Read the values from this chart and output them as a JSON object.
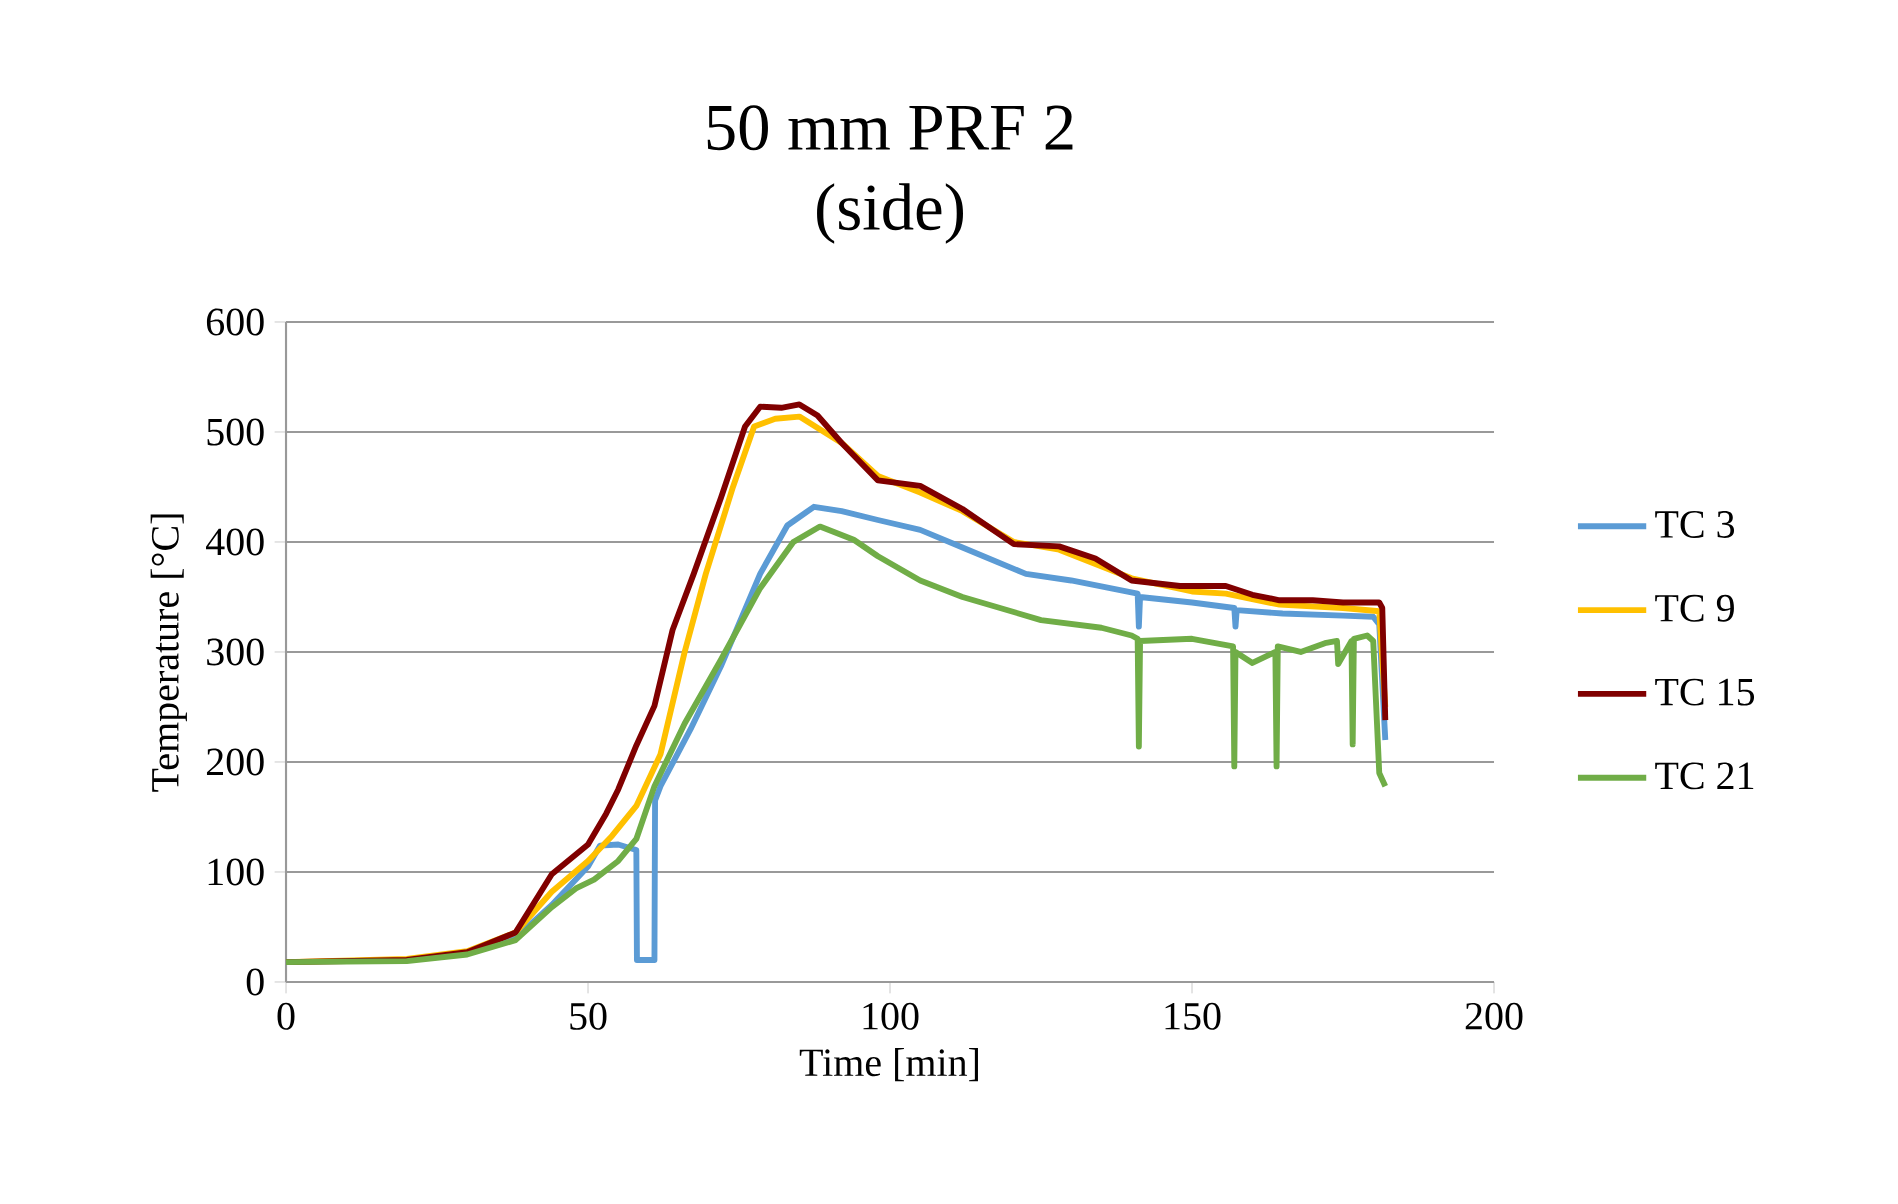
{
  "chart_data": {
    "type": "line",
    "title": "50 mm PRF 2",
    "subtitle": "(side)",
    "xlabel": "Time [min]",
    "ylabel": "Temperature [°C]",
    "xlim": [
      0,
      200
    ],
    "xticks": [
      0,
      50,
      100,
      150,
      200
    ],
    "ylim": [
      0,
      600
    ],
    "yticks": [
      0,
      100,
      200,
      300,
      400,
      500,
      600
    ],
    "grid": "y",
    "legend": "right",
    "marker": "none",
    "line_style": "solid",
    "series": [
      {
        "name": "TC 3",
        "color": "#5b9bd5",
        "x": [
          30,
          38,
          44,
          50,
          52,
          55,
          58,
          58.1,
          61,
          61.1,
          62,
          67,
          72,
          78.5,
          83,
          87.4,
          92,
          98,
          105,
          112,
          122.5,
          130,
          141,
          141.2,
          141.4,
          150,
          157,
          157.2,
          157.4,
          165,
          175,
          180,
          181,
          182
        ],
        "values": [
          26,
          40,
          70,
          105,
          124,
          125,
          120,
          20,
          20,
          165,
          178,
          230,
          287,
          371,
          415,
          432,
          428,
          420,
          411,
          395,
          371,
          365,
          353,
          323,
          350,
          345,
          340,
          323,
          338,
          335,
          333,
          332,
          325,
          220
        ]
      },
      {
        "name": "TC 9",
        "color": "#ffc000",
        "x": [
          0,
          20,
          30,
          38,
          44,
          50,
          54,
          58,
          62,
          66,
          69.5,
          74,
          77.5,
          81,
          85,
          92,
          98,
          105,
          112,
          120.5,
          128,
          140,
          150,
          155.6,
          164.5,
          175,
          181,
          182
        ],
        "values": [
          18,
          21,
          28,
          45,
          82,
          110,
          133,
          160,
          207,
          300,
          371,
          450,
          505,
          512,
          514,
          490,
          460,
          445,
          428,
          400,
          393,
          367,
          355,
          353,
          343,
          340,
          337,
          250
        ]
      },
      {
        "name": "TC 15",
        "color": "#800000",
        "x": [
          0,
          20,
          30,
          38,
          44,
          50,
          53,
          55,
          58,
          61,
          64,
          67.5,
          72,
          76,
          78.5,
          82,
          85,
          88,
          92,
          98,
          105,
          112,
          120.5,
          128,
          134,
          140,
          148,
          155.6,
          160,
          164.5,
          170,
          175,
          181,
          181.5,
          182
        ],
        "values": [
          18,
          20,
          27,
          45,
          98,
          125,
          153,
          175,
          215,
          251,
          320,
          371,
          440,
          505,
          523,
          522,
          525,
          515,
          490,
          456,
          451,
          430,
          398,
          396,
          385,
          365,
          360,
          360,
          352,
          347,
          347,
          345,
          345,
          340,
          238
        ]
      },
      {
        "name": "TC 21",
        "color": "#70ad47",
        "x": [
          0,
          20,
          30,
          38,
          44,
          48,
          51,
          55,
          58,
          61,
          66,
          72,
          78.5,
          84,
          88.4,
          94,
          98,
          105,
          112,
          125,
          135,
          140,
          141,
          141.2,
          141.4,
          150,
          156.8,
          157,
          157.2,
          160,
          163.8,
          164,
          164.2,
          168,
          172,
          174,
          174.2,
          176.4,
          176.6,
          176.8,
          179,
          180,
          181,
          182
        ],
        "values": [
          18,
          19,
          25,
          38,
          68,
          85,
          93,
          110,
          130,
          178,
          235,
          293,
          358,
          400,
          414,
          402,
          387,
          365,
          350,
          329,
          322,
          315,
          312,
          214,
          310,
          312,
          305,
          196,
          300,
          290,
          300,
          196,
          305,
          300,
          308,
          310,
          289,
          310,
          216,
          312,
          315,
          310,
          190,
          178
        ]
      }
    ]
  }
}
